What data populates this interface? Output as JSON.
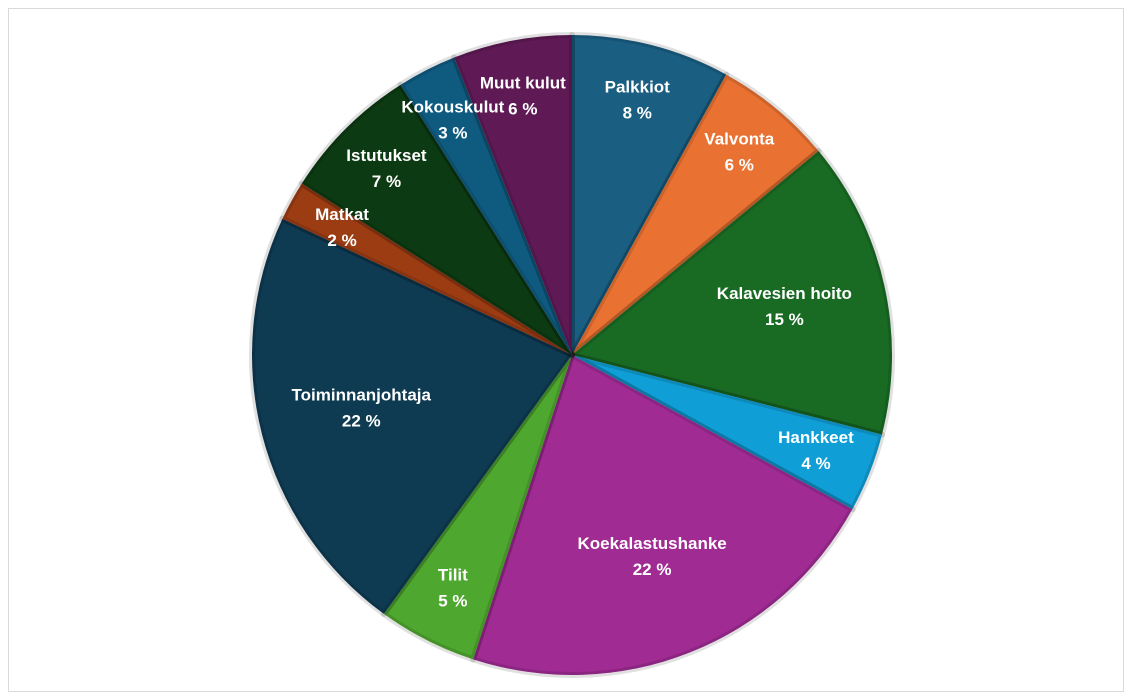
{
  "chart_data": {
    "type": "pie",
    "categories": [
      "Palkkiot",
      "Valvonta",
      "Kalavesien hoito",
      "Hankkeet",
      "Koekalastushanke",
      "Tilit",
      "Toiminnanjohtaja",
      "Matkat",
      "Istutukset",
      "Kokouskulut",
      "Muut kulut"
    ],
    "values": [
      8,
      6,
      15,
      4,
      22,
      5,
      22,
      2,
      7,
      3,
      6
    ],
    "value_labels": [
      "8 %",
      "6 %",
      "15 %",
      "4 %",
      "22 %",
      "5 %",
      "22 %",
      "2 %",
      "7 %",
      "3 %",
      "6 %"
    ],
    "colors": [
      "#1a5f82",
      "#e97132",
      "#196b24",
      "#0f9ed5",
      "#a02b93",
      "#4ea72e",
      "#0e3a52",
      "#9b3c13",
      "#0c3a12",
      "#0f5b80",
      "#5f1a55"
    ]
  }
}
